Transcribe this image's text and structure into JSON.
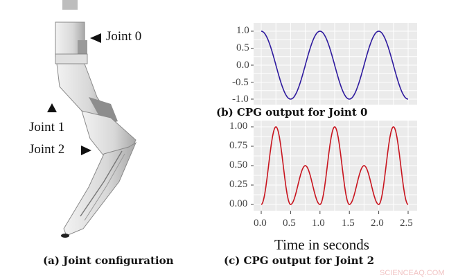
{
  "figure": {
    "joint_labels": [
      "Joint 0",
      "Joint 1",
      "Joint 2"
    ],
    "captions": {
      "a": "(a) Joint configuration",
      "b": "(b)  CPG  output  for  Joint  0",
      "c": "(c) CPG output for Joint 2"
    },
    "watermark": "SCIENCEAQ.COM"
  },
  "chart_data": [
    {
      "type": "line",
      "title": "(b) CPG output for Joint 0",
      "xlabel": "",
      "ylabel": "",
      "xlim": [
        0,
        2.5
      ],
      "ylim": [
        -1.0,
        1.0
      ],
      "ytick_labels": [
        "1.0",
        "0.5",
        "0.0",
        "-0.5",
        "-1.0"
      ],
      "grid": true,
      "line_color": "#2e1a9e",
      "series": [
        {
          "name": "Joint 0",
          "formula": "cos(2*pi*t)",
          "x": [
            0.0,
            0.25,
            0.5,
            0.75,
            1.0,
            1.25,
            1.5,
            1.75,
            2.0,
            2.25,
            2.5
          ],
          "values": [
            1.0,
            0.0,
            -1.0,
            0.0,
            1.0,
            0.0,
            -1.0,
            0.0,
            1.0,
            0.0,
            -1.0
          ]
        }
      ]
    },
    {
      "type": "line",
      "title": "(c) CPG output for Joint 2",
      "xlabel": "Time in seconds",
      "ylabel": "",
      "xlim": [
        0,
        2.5
      ],
      "ylim": [
        0.0,
        1.0
      ],
      "xtick_labels": [
        "0.0",
        "0.5",
        "1.0",
        "1.5",
        "2.0",
        "2.5"
      ],
      "ytick_labels": [
        "1.00",
        "0.75",
        "0.50",
        "0.25",
        "0.00"
      ],
      "grid": true,
      "line_color": "#c8141e",
      "series": [
        {
          "name": "Joint 2",
          "x": [
            0.0,
            0.25,
            0.5,
            0.75,
            1.0,
            1.25,
            1.5,
            1.75,
            2.0,
            2.25,
            2.5
          ],
          "values": [
            0.0,
            1.0,
            0.0,
            0.5,
            0.0,
            1.0,
            0.0,
            0.5,
            0.0,
            1.0,
            0.0
          ]
        }
      ]
    }
  ]
}
